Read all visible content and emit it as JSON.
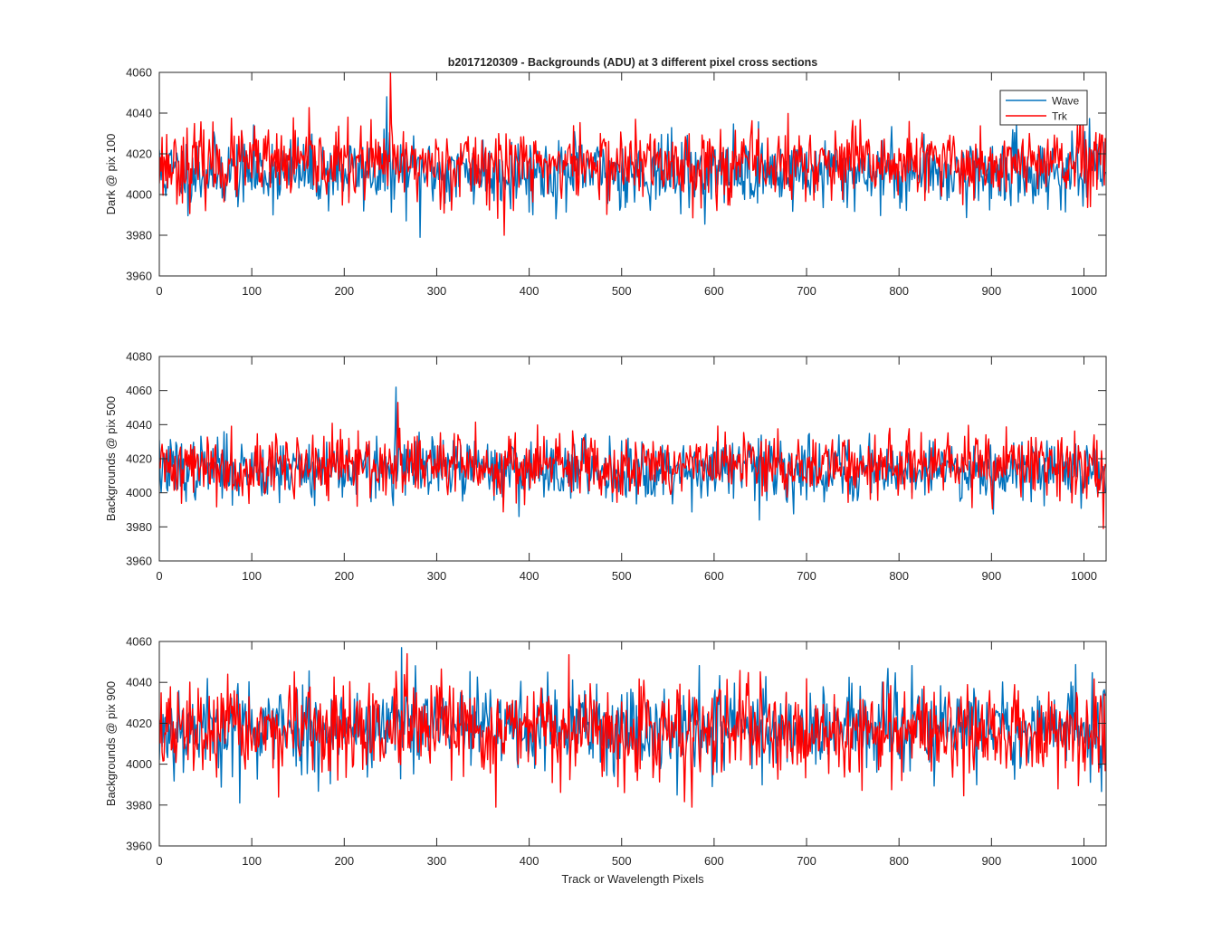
{
  "figure": {
    "title": "b2017120309 - Backgrounds (ADU) at 3 different pixel cross sections"
  },
  "chart_data": [
    {
      "type": "line",
      "ylabel": "Dark @ pix 100",
      "xlabel": "",
      "xlim": [
        0,
        1024
      ],
      "ylim": [
        3960,
        4060
      ],
      "xticks": [
        0,
        100,
        200,
        300,
        400,
        500,
        600,
        700,
        800,
        900,
        1000
      ],
      "yticks": [
        3960,
        3980,
        4000,
        4020,
        4040,
        4060
      ],
      "legend": {
        "position": "top-right",
        "entries": [
          "Wave",
          "Trk"
        ]
      },
      "noise_model": {
        "n_points": 1024,
        "x_start": 0,
        "x_step": 1
      },
      "series": [
        {
          "name": "Wave",
          "color": "#0072BD",
          "mean": 4011,
          "std": 8.5,
          "seed": 11,
          "min": 3979,
          "max": 4048
        },
        {
          "name": "Trk",
          "color": "#FF0000",
          "mean": 4015,
          "std": 9,
          "seed": 23,
          "min": 3980,
          "max": 4060
        }
      ]
    },
    {
      "type": "line",
      "ylabel": "Backgrounds @ pix 500",
      "xlabel": "",
      "xlim": [
        0,
        1024
      ],
      "ylim": [
        3960,
        4080
      ],
      "xticks": [
        0,
        100,
        200,
        300,
        400,
        500,
        600,
        700,
        800,
        900,
        1000
      ],
      "yticks": [
        3960,
        3980,
        4000,
        4020,
        4040,
        4060,
        4080
      ],
      "noise_model": {
        "n_points": 1024,
        "x_start": 0,
        "x_step": 1
      },
      "series": [
        {
          "name": "Wave",
          "color": "#0072BD",
          "mean": 4014,
          "std": 9,
          "seed": 37,
          "min": 3984,
          "max": 4062
        },
        {
          "name": "Trk",
          "color": "#FF0000",
          "mean": 4016,
          "std": 9.5,
          "seed": 41,
          "min": 3979,
          "max": 4053
        }
      ]
    },
    {
      "type": "line",
      "ylabel": "Backgrounds @ pix 900",
      "xlabel": "Track or Wavelength Pixels",
      "xlim": [
        0,
        1024
      ],
      "ylim": [
        3960,
        4060
      ],
      "xticks": [
        0,
        100,
        200,
        300,
        400,
        500,
        600,
        700,
        800,
        900,
        1000
      ],
      "yticks": [
        3960,
        3980,
        4000,
        4020,
        4040,
        4060
      ],
      "noise_model": {
        "n_points": 1024,
        "x_start": 0,
        "x_step": 1
      },
      "series": [
        {
          "name": "Wave",
          "color": "#0072BD",
          "mean": 4018,
          "std": 11,
          "seed": 53,
          "min": 3981,
          "max": 4057
        },
        {
          "name": "Trk",
          "color": "#FF0000",
          "mean": 4016,
          "std": 11,
          "seed": 67,
          "min": 3979,
          "max": 4054
        }
      ]
    }
  ]
}
